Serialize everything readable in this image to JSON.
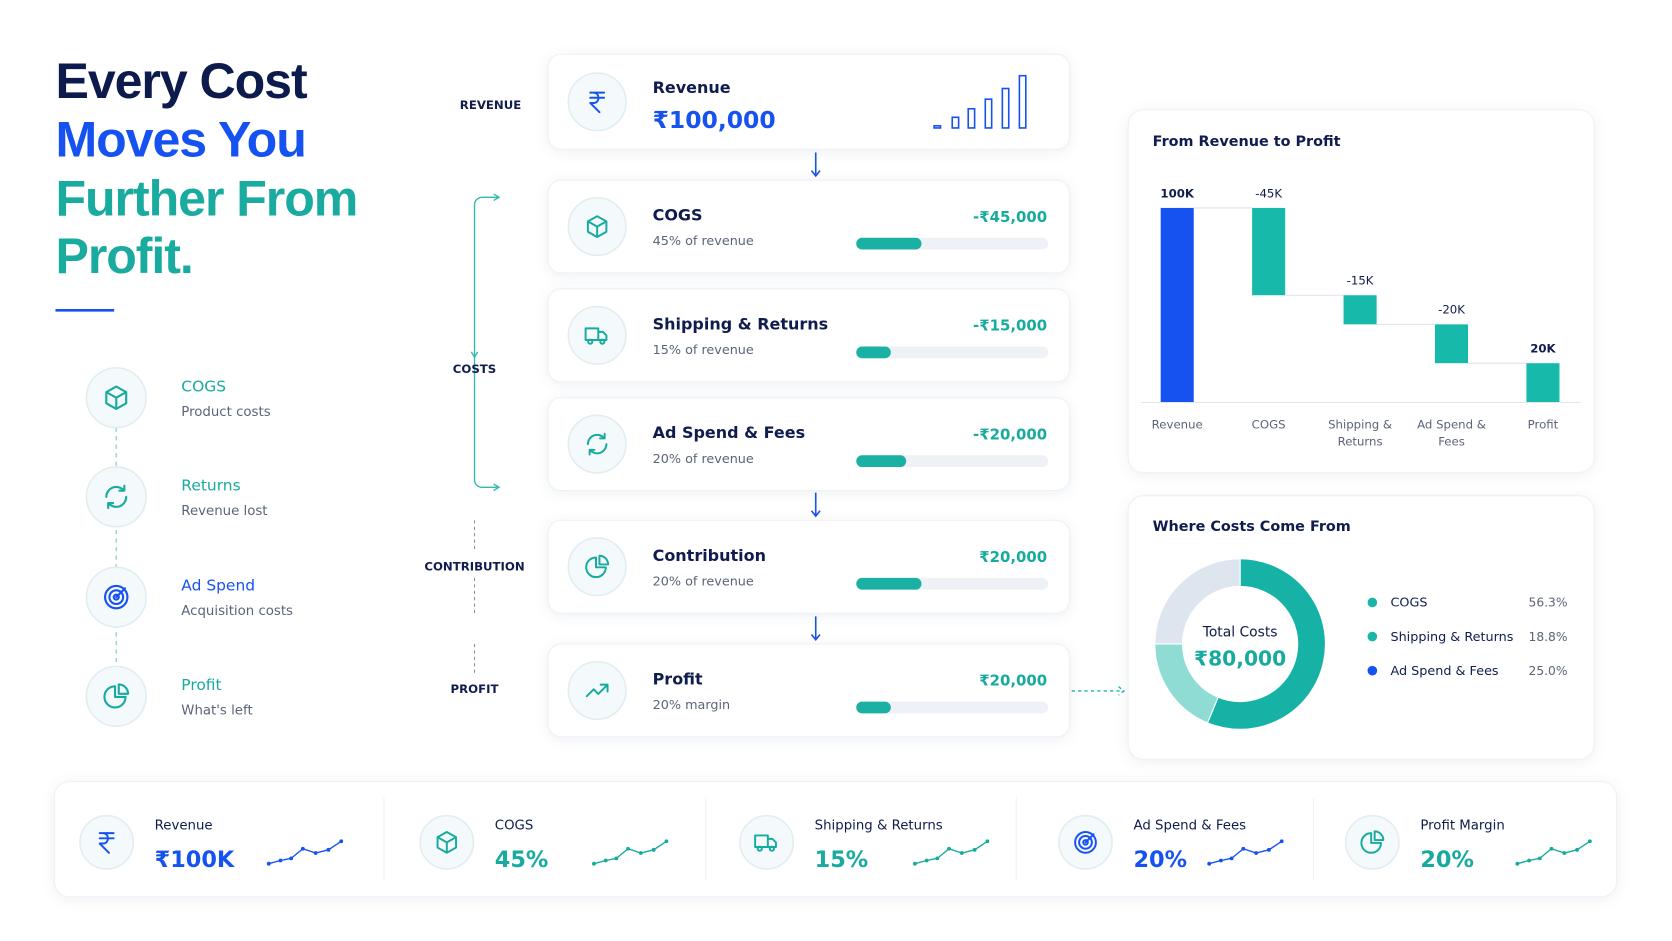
{
  "headline": {
    "lines": [
      "Every Cost",
      "Moves You",
      "Further From",
      "Profit."
    ]
  },
  "steps": [
    {
      "label": "COGS",
      "desc": "Product costs"
    },
    {
      "label": "Returns",
      "desc": "Revenue lost"
    },
    {
      "label": "Ad Spend",
      "desc": "Acquisition costs"
    },
    {
      "label": "Profit",
      "desc": "What's left"
    }
  ],
  "flow_labels": [
    "REVENUE",
    "COSTS",
    "CONTRIBUTION",
    "PROFIT"
  ],
  "flow": [
    {
      "title": "Revenue",
      "amount": "₹100,000"
    },
    {
      "title": "COGS",
      "note": "45% of revenue",
      "amount": "-₹45,000",
      "bar": 34
    },
    {
      "title": "Shipping & Returns",
      "note": "15% of revenue",
      "amount": "-₹15,000",
      "bar": 18
    },
    {
      "title": "Ad Spend & Fees",
      "note": "20% of revenue",
      "amount": "-₹20,000",
      "bar": 26
    },
    {
      "title": "Contribution",
      "note": "20% of revenue",
      "amount": "₹20,000",
      "bar": 34
    },
    {
      "title": "Profit",
      "note": "20% margin",
      "amount": "₹20,000",
      "bar": 18
    }
  ],
  "chart_data": [
    {
      "type": "waterfall",
      "title": "From Revenue to Profit",
      "categories": [
        "Revenue",
        "COGS",
        "Shipping & Returns",
        "Ad Spend & Fees",
        "Profit"
      ],
      "values": [
        100000,
        -45000,
        -15000,
        -20000,
        20000
      ],
      "value_labels": [
        "100K",
        "-45K",
        "-15K",
        "-20K",
        "20K"
      ],
      "colors": [
        "#1652f0",
        "#17b9ab",
        "#17b9ab",
        "#17b9ab",
        "#17b9ab"
      ]
    },
    {
      "type": "donut",
      "title": "Where Costs Come From",
      "center_label": "Total Costs",
      "center_value": "₹80,000",
      "categories": [
        "COGS",
        "Shipping & Returns",
        "Ad Spend & Fees"
      ],
      "values": [
        56.3,
        18.8,
        25.0
      ],
      "value_labels": [
        "56.3%",
        "18.8%",
        "25.0%"
      ],
      "colors": [
        "#17b2a6",
        "#8fdcd5",
        "#dde6ef"
      ],
      "legend_colors": [
        "#1bb5a8",
        "#1bb5a8",
        "#1652f0"
      ]
    }
  ],
  "kpis": [
    {
      "label": "Revenue",
      "value": "₹100K",
      "color": "#1652f0"
    },
    {
      "label": "COGS",
      "value": "45%",
      "color": "#17ab9f"
    },
    {
      "label": "Shipping & Returns",
      "value": "15%",
      "color": "#17ab9f"
    },
    {
      "label": "Ad Spend & Fees",
      "value": "20%",
      "color": "#1652f0"
    },
    {
      "label": "Profit Margin",
      "value": "20%",
      "color": "#17ab9f"
    }
  ]
}
